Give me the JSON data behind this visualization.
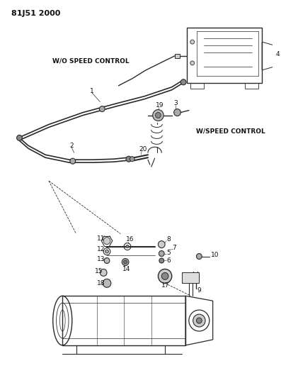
{
  "title": "81J51 2000",
  "label_wo_speed": "W/O SPEED CONTROL",
  "label_w_speed": "W/SPEED CONTROL",
  "bg_color": "#ffffff",
  "lc": "#2a2a2a",
  "tc": "#111111",
  "title_fs": 8,
  "label_fs": 6.5,
  "part_fs": 6.5,
  "figsize": [
    3.97,
    5.33
  ],
  "dpi": 100
}
